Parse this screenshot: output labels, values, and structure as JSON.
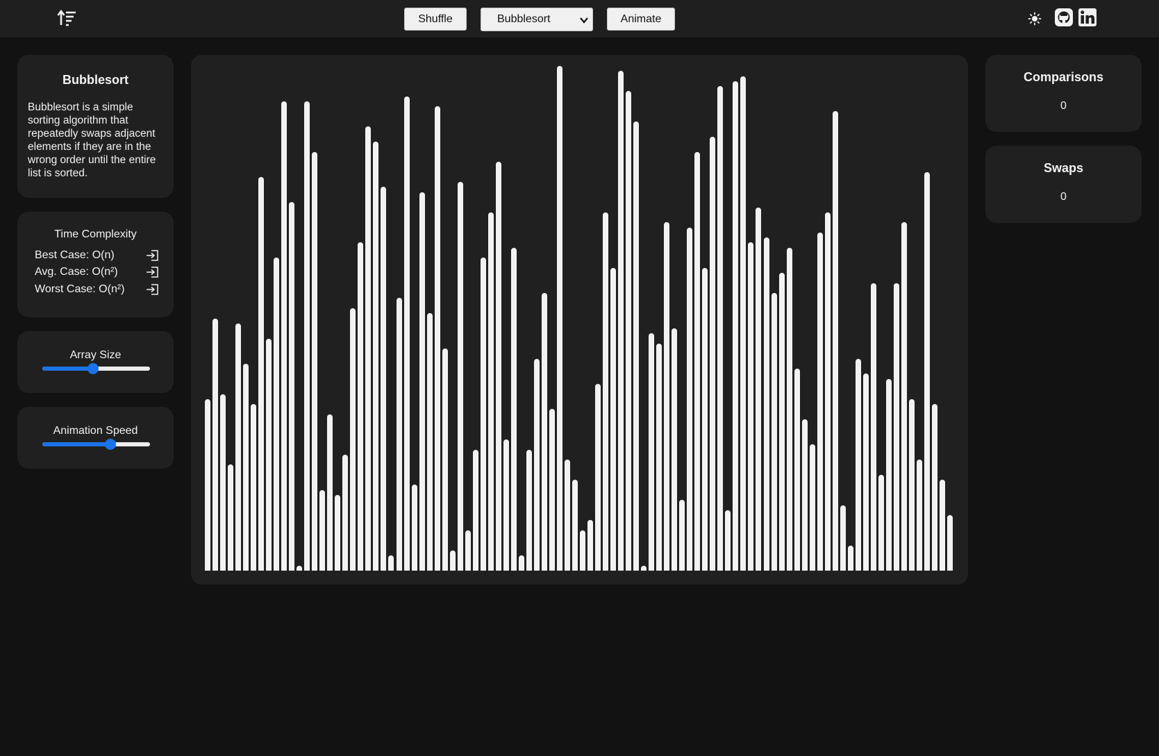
{
  "header": {
    "shuffle_label": "Shuffle",
    "algorithm_select": {
      "selected": "Bubblesort",
      "options": [
        "Bubblesort"
      ]
    },
    "animate_label": "Animate",
    "icons": {
      "logo": "sort-icon",
      "theme": "sun-icon",
      "github": "github-icon",
      "linkedin": "linkedin-icon"
    }
  },
  "algorithm_info": {
    "title": "Bubblesort",
    "description": "Bubblesort is a simple sorting algorithm that repeatedly swaps adjacent elements if they are in the wrong order until the entire list is sorted."
  },
  "time_complexity": {
    "heading": "Time Complexity",
    "rows": [
      {
        "label": "Best Case: O(n)",
        "icon": "enter-icon"
      },
      {
        "label": "Avg. Case: O(n²)",
        "icon": "enter-icon"
      },
      {
        "label": "Worst Case: O(n²)",
        "icon": "enter-icon"
      }
    ]
  },
  "controls": {
    "array_size": {
      "label": "Array Size",
      "fraction": 0.47
    },
    "animation_speed": {
      "label": "Animation Speed",
      "fraction": 0.63
    }
  },
  "stats": {
    "comparisons": {
      "label": "Comparisons",
      "value": "0"
    },
    "swaps": {
      "label": "Swaps",
      "value": "0"
    }
  },
  "colors": {
    "accent": "#1a73e8",
    "bar": "#f2f2f2",
    "panel": "#202020",
    "background": "#121212"
  },
  "array_values": [
    34,
    50,
    35,
    21,
    49,
    41,
    33,
    78,
    46,
    62,
    93,
    73,
    1,
    93,
    83,
    16,
    31,
    15,
    23,
    52,
    65,
    88,
    85,
    76,
    3,
    54,
    94,
    17,
    75,
    51,
    92,
    44,
    4,
    77,
    8,
    24,
    62,
    71,
    81,
    26,
    64,
    3,
    24,
    42,
    55,
    32,
    100,
    22,
    18,
    8,
    10,
    37,
    71,
    60,
    99,
    95,
    89,
    1,
    47,
    45,
    69,
    48,
    14,
    68,
    83,
    60,
    86,
    96,
    12,
    97,
    98,
    65,
    72,
    66,
    55,
    59,
    64,
    40,
    30,
    25,
    67,
    71,
    91,
    13,
    5,
    42,
    39,
    57,
    19,
    38,
    57,
    69,
    34,
    22,
    79,
    33,
    18,
    11
  ]
}
